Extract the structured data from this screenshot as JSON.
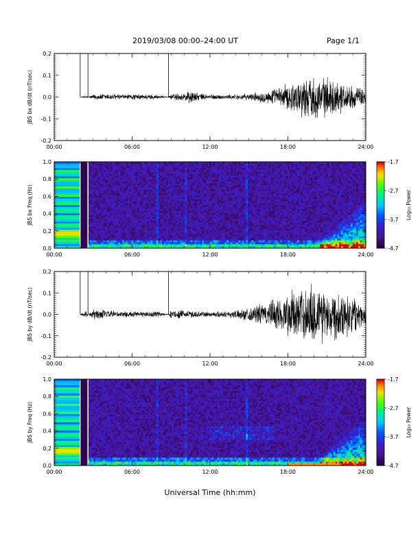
{
  "header": {
    "title": "2019/03/08   00:00–24:00 UT",
    "page": "Page 1/1"
  },
  "xaxis_label": "Universal Time (hh:mm)",
  "chart_data": [
    {
      "type": "line",
      "ylabel": "JBS bx dB/dt (nT/sec)",
      "xlim": [
        0,
        24
      ],
      "ylim": [
        -0.2,
        0.2
      ],
      "xticks": [
        "00:00",
        "06:00",
        "12:00",
        "18:00",
        "24:00"
      ],
      "yticks": [
        "-0.2",
        "-0.1",
        "0.0",
        "0.1",
        "0.2"
      ],
      "series": [
        {
          "x": [
            0,
            2,
            2.0,
            2.0,
            2.5,
            2.6,
            2.6,
            3,
            4,
            5,
            6,
            7,
            8,
            8.8,
            8.8,
            9,
            10,
            10.5,
            11,
            12,
            13,
            14,
            15,
            16,
            17,
            18,
            19,
            20,
            21,
            22,
            23,
            24
          ],
          "y": [
            null,
            0.0,
            0.2,
            0.0,
            0.005,
            0.2,
            0.0,
            0.01,
            0.012,
            0.01,
            0.01,
            0.01,
            0.008,
            0.2,
            0.0,
            0.012,
            0.015,
            0.03,
            0.015,
            0.01,
            0.008,
            0.01,
            0.012,
            0.02,
            0.03,
            0.05,
            0.07,
            0.08,
            0.07,
            0.06,
            0.04,
            0.03
          ]
        }
      ],
      "grid": false
    },
    {
      "type": "heatmap",
      "ylabel": "JBS bx Freq (Hz)",
      "xlim": [
        0,
        24
      ],
      "ylim": [
        0.0,
        1.0
      ],
      "xticks": [
        "00:00",
        "06:00",
        "12:00",
        "18:00",
        "24:00"
      ],
      "yticks": [
        "0.0",
        "0.2",
        "0.4",
        "0.6",
        "0.8",
        "1.0"
      ],
      "colorbar": {
        "label": "Log₁₀ Power",
        "ticks": [
          "-1.7",
          "-2.7",
          "-3.7",
          "-4.7"
        ],
        "range": [
          -4.7,
          -1.7
        ]
      },
      "data_gap_hours": [
        2.0,
        2.6
      ]
    },
    {
      "type": "line",
      "ylabel": "JBS by dB/dt (nT/sec)",
      "xlim": [
        0,
        24
      ],
      "ylim": [
        -0.2,
        0.2
      ],
      "xticks": [
        "00:00",
        "06:00",
        "12:00",
        "18:00",
        "24:00"
      ],
      "yticks": [
        "-0.2",
        "-0.1",
        "0.0",
        "0.1",
        "0.2"
      ],
      "series": [
        {
          "x": [
            0,
            2,
            2.0,
            2.0,
            2.5,
            2.6,
            2.6,
            3,
            4,
            5,
            6,
            7,
            8,
            8.8,
            8.8,
            9,
            10,
            11,
            12,
            13,
            14,
            15,
            16,
            17,
            18,
            19,
            20,
            21,
            22,
            23,
            24
          ],
          "y": [
            null,
            0.0,
            0.2,
            0.0,
            0.02,
            0.2,
            0.0,
            0.02,
            0.015,
            0.012,
            0.01,
            0.01,
            0.012,
            0.2,
            0.0,
            0.015,
            0.015,
            0.012,
            0.01,
            0.012,
            0.015,
            0.025,
            0.04,
            0.06,
            0.08,
            0.1,
            0.12,
            0.1,
            0.09,
            0.07,
            0.04
          ]
        }
      ],
      "grid": false
    },
    {
      "type": "heatmap",
      "ylabel": "JBS by Freq (Hz)",
      "xlim": [
        0,
        24
      ],
      "ylim": [
        0.0,
        1.0
      ],
      "xticks": [
        "00:00",
        "06:00",
        "12:00",
        "18:00",
        "24:00"
      ],
      "yticks": [
        "0.0",
        "0.2",
        "0.4",
        "0.6",
        "0.8",
        "1.0"
      ],
      "colorbar": {
        "label": "Log₁₀ Power",
        "ticks": [
          "-1.7",
          "-2.7",
          "-3.7",
          "-4.7"
        ],
        "range": [
          -4.7,
          -1.7
        ]
      },
      "data_gap_hours": [
        2.0,
        2.6
      ]
    }
  ]
}
